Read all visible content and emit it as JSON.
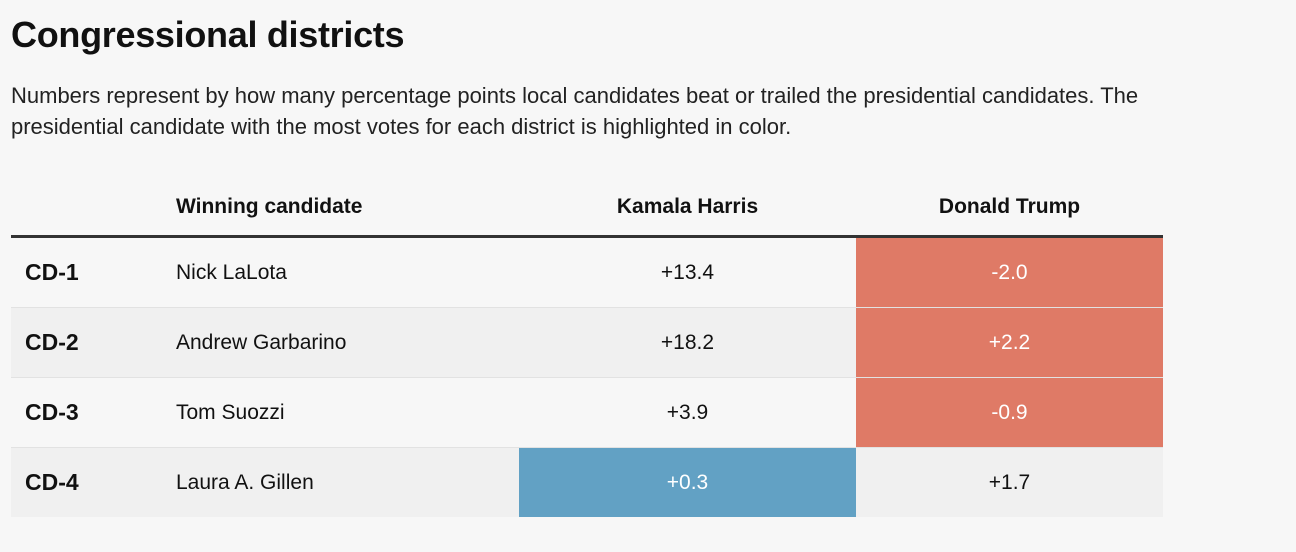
{
  "title": "Congressional districts",
  "subtitle": "Numbers represent by how many percentage points local candidates beat or trailed the presidential candidates. The presidential candidate with the most votes for each district is highlighted in color.",
  "colors": {
    "trump_highlight": "#df7a66",
    "harris_highlight": "#62a1c4"
  },
  "table": {
    "headers": [
      "",
      "Winning candidate",
      "Kamala Harris",
      "Donald Trump"
    ],
    "rows": [
      {
        "district": "CD-1",
        "candidate": "Nick LaLota",
        "harris": "+13.4",
        "trump": "-2.0",
        "highlight": "trump"
      },
      {
        "district": "CD-2",
        "candidate": "Andrew Garbarino",
        "harris": "+18.2",
        "trump": "+2.2",
        "highlight": "trump"
      },
      {
        "district": "CD-3",
        "candidate": "Tom Suozzi",
        "harris": "+3.9",
        "trump": "-0.9",
        "highlight": "trump"
      },
      {
        "district": "CD-4",
        "candidate": "Laura A. Gillen",
        "harris": "+0.3",
        "trump": "+1.7",
        "highlight": "harris"
      }
    ]
  }
}
